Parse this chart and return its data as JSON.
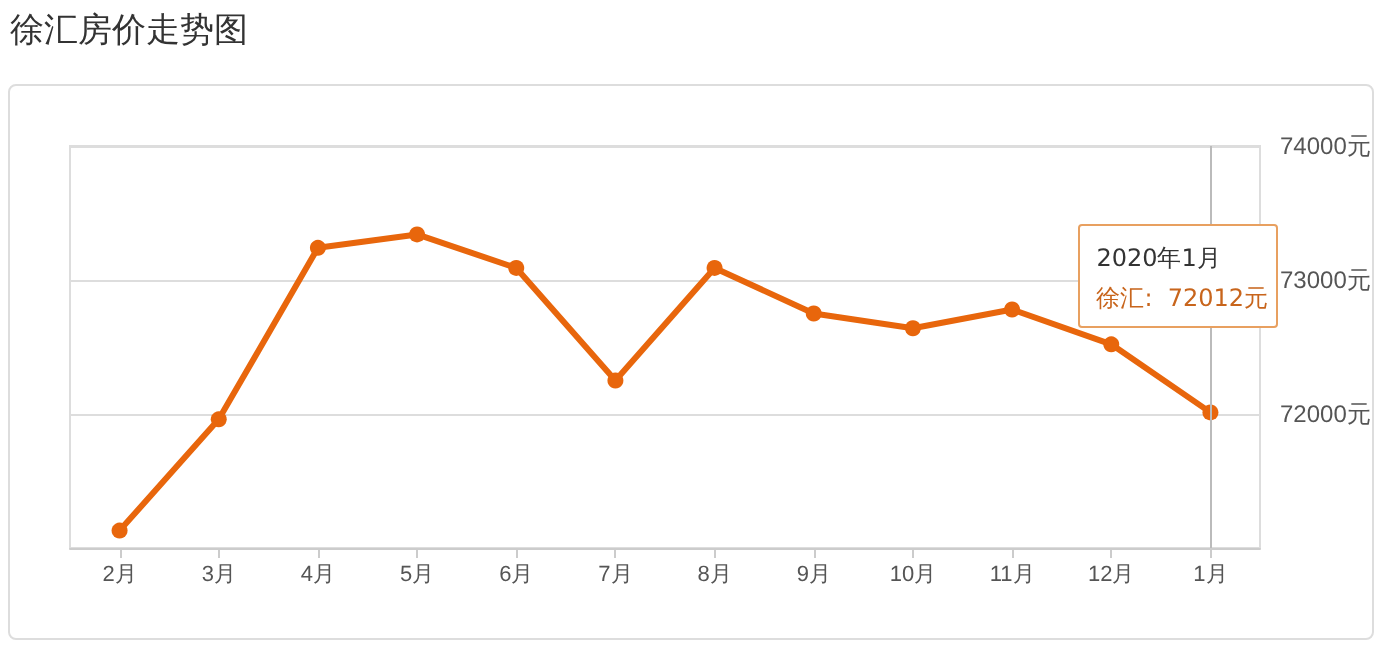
{
  "chart_data": {
    "type": "line",
    "title": "徐汇房价走势图",
    "categories": [
      "2月",
      "3月",
      "4月",
      "5月",
      "6月",
      "7月",
      "8月",
      "9月",
      "10月",
      "11月",
      "12月",
      "1月"
    ],
    "series": [
      {
        "color": "#e8660c",
        "values": [
          71130,
          71960,
          73240,
          73340,
          73090,
          72250,
          73090,
          72750,
          72640,
          72780,
          72520,
          72012
        ]
      }
    ],
    "ylim": [
      71000,
      74000
    ],
    "yticks": [
      {
        "value": 71000,
        "label": null
      },
      {
        "value": 72000,
        "label": "72000元"
      },
      {
        "value": 73000,
        "label": "73000元"
      },
      {
        "value": 74000,
        "label": "74000元"
      }
    ],
    "grid": "y",
    "marker": "circle",
    "line_style": "solid",
    "ref_lines": [
      {
        "axis": "x",
        "value": "1月",
        "color": "#bbbbbb"
      }
    ],
    "annotations": [
      "2020年1月",
      "徐汇:  72012元"
    ]
  }
}
